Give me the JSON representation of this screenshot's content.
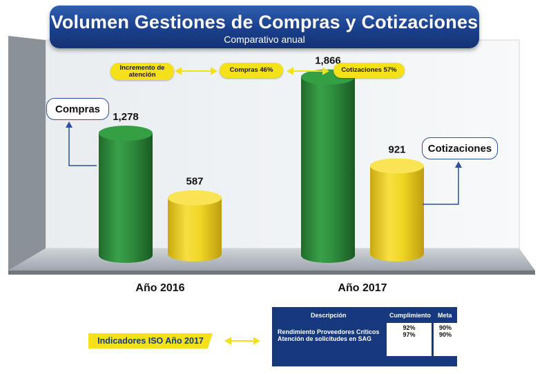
{
  "title": "Volumen Gestiones de Compras y Cotizaciones",
  "subtitle": "Comparativo anual",
  "pills": {
    "incremento": "Incremento de atención",
    "compras": "Compras 46%",
    "cotizaciones": "Cotizaciones 57%"
  },
  "callouts": {
    "compras": "Compras",
    "cotizaciones": "Cotizaciones"
  },
  "colors": {
    "compras": "#2e8b3c",
    "cotizaciones": "#f1d61f",
    "accent": "#1a3f8c"
  },
  "chart_data": {
    "type": "bar",
    "categories": [
      "Año 2016",
      "Año 2017"
    ],
    "series": [
      {
        "name": "Compras",
        "values": [
          1278,
          1866
        ],
        "labels": [
          "1,278",
          "1,866"
        ]
      },
      {
        "name": "Cotizaciones",
        "values": [
          587,
          921
        ],
        "labels": [
          "587",
          "921"
        ]
      }
    ],
    "title": "Volumen Gestiones de Compras y Cotizaciones",
    "subtitle": "Comparativo anual",
    "ylim": [
      0,
      2000
    ]
  },
  "iso": {
    "label": "Indicadores ISO Año 2017",
    "headers": {
      "descripcion": "Descripción",
      "cumplimiento": "Cumplimiento",
      "meta": "Meta"
    },
    "rows": [
      {
        "descripcion": "Rendimiento Proveedores Críticos",
        "cumplimiento": "92%",
        "meta": "90%"
      },
      {
        "descripcion": "Atención de solicitudes en SAG",
        "cumplimiento": "97%",
        "meta": "90%"
      }
    ]
  }
}
